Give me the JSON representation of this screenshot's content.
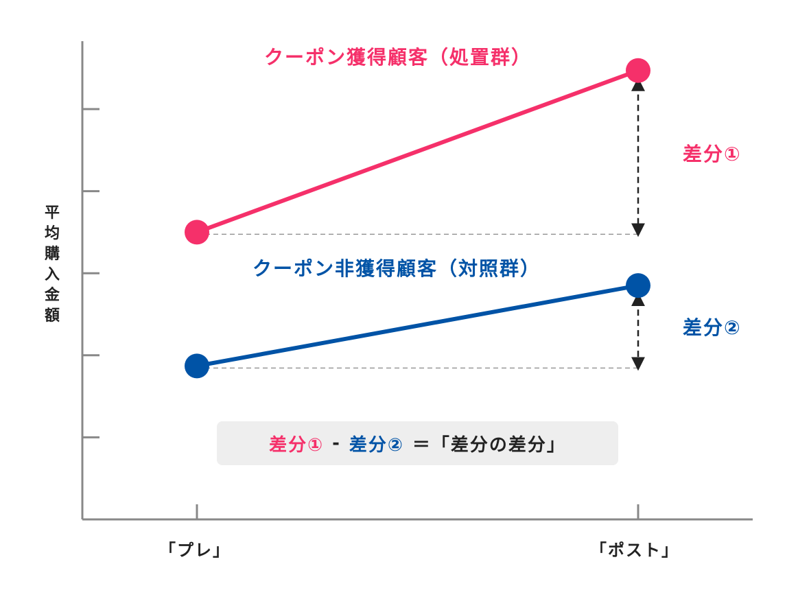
{
  "chart_data": {
    "type": "line",
    "title": "",
    "xlabel": "",
    "ylabel": "平均購入金額",
    "categories": [
      "「プレ」",
      "「ポスト」"
    ],
    "ylim": [
      0,
      6
    ],
    "y_ticks": [
      1,
      2,
      3,
      4,
      5
    ],
    "y_tick_labels_shown": false,
    "series": [
      {
        "name": "クーポン獲得顧客（処置群）",
        "color": "#f5306a",
        "values": [
          3.5,
          5.47
        ]
      },
      {
        "name": "クーポン非獲得顧客（対照群）",
        "color": "#0053a6",
        "values": [
          1.87,
          2.85
        ]
      }
    ],
    "annotations": [
      {
        "label": "差分①",
        "color": "#f5306a"
      },
      {
        "label": "差分②",
        "color": "#0053a6"
      }
    ]
  },
  "formula": {
    "part1": "差分①",
    "minus": "-",
    "part2": "差分②",
    "equals": "＝「差分の差分」"
  }
}
